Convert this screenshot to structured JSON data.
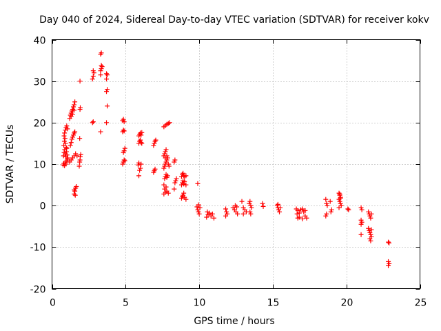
{
  "chart_data": {
    "type": "scatter",
    "title": "Day 040 of 2024, Sidereal Day-to-day VTEC variation (SDTVAR) for receiver kokv",
    "xlabel": "GPS time / hours",
    "ylabel": "SDTVAR / TECUs",
    "xlim": [
      0,
      25
    ],
    "ylim": [
      -20,
      40
    ],
    "xticks": [
      0,
      5,
      10,
      15,
      20,
      25
    ],
    "yticks": [
      -20,
      -10,
      0,
      10,
      20,
      30,
      40
    ],
    "grid": true,
    "marker": "plus",
    "color": "#ff0000",
    "series": [
      {
        "name": "SDTVAR",
        "points": [
          [
            0.75,
            9.8
          ],
          [
            0.8,
            10.2
          ],
          [
            0.85,
            9.6
          ],
          [
            0.9,
            10.5
          ],
          [
            0.95,
            10.0
          ],
          [
            1.0,
            10.8
          ],
          [
            1.05,
            11.2
          ],
          [
            0.78,
            12.0
          ],
          [
            0.82,
            12.8
          ],
          [
            0.86,
            13.5
          ],
          [
            0.9,
            12.5
          ],
          [
            0.94,
            11.8
          ],
          [
            0.98,
            13.0
          ],
          [
            1.02,
            12.2
          ],
          [
            1.06,
            11.5
          ],
          [
            0.8,
            14.5
          ],
          [
            0.84,
            15.5
          ],
          [
            0.88,
            16.2
          ],
          [
            0.92,
            15.0
          ],
          [
            0.96,
            14.0
          ],
          [
            1.0,
            13.8
          ],
          [
            0.85,
            17.5
          ],
          [
            0.9,
            18.2
          ],
          [
            0.95,
            18.8
          ],
          [
            1.0,
            19.2
          ],
          [
            1.05,
            18.5
          ],
          [
            0.82,
            16.8
          ],
          [
            1.2,
            10.5
          ],
          [
            1.3,
            11.0
          ],
          [
            1.4,
            11.5
          ],
          [
            1.5,
            12.0
          ],
          [
            1.6,
            12.5
          ],
          [
            1.7,
            12.0
          ],
          [
            1.25,
            14.5
          ],
          [
            1.3,
            15.2
          ],
          [
            1.35,
            16.0
          ],
          [
            1.4,
            16.5
          ],
          [
            1.45,
            17.0
          ],
          [
            1.5,
            17.5
          ],
          [
            1.55,
            17.8
          ],
          [
            1.2,
            21.0
          ],
          [
            1.25,
            21.8
          ],
          [
            1.3,
            22.3
          ],
          [
            1.35,
            22.8
          ],
          [
            1.4,
            23.2
          ],
          [
            1.45,
            23.8
          ],
          [
            1.5,
            24.3
          ],
          [
            1.55,
            25.0
          ],
          [
            1.5,
            23.0
          ],
          [
            1.4,
            22.0
          ],
          [
            1.3,
            21.5
          ],
          [
            1.5,
            2.8
          ],
          [
            1.55,
            3.5
          ],
          [
            1.6,
            4.2
          ],
          [
            1.65,
            4.6
          ],
          [
            1.5,
            3.8
          ],
          [
            1.58,
            2.5
          ],
          [
            1.85,
            9.5
          ],
          [
            1.88,
            10.5
          ],
          [
            1.9,
            11.0
          ],
          [
            1.92,
            11.8
          ],
          [
            1.95,
            12.3
          ],
          [
            1.88,
            16.2
          ],
          [
            1.9,
            23.2
          ],
          [
            1.92,
            23.6
          ],
          [
            1.9,
            30.0
          ],
          [
            2.75,
            20.0
          ],
          [
            2.8,
            20.2
          ],
          [
            2.75,
            30.5
          ],
          [
            2.8,
            31.2
          ],
          [
            2.85,
            32.0
          ],
          [
            2.8,
            32.5
          ],
          [
            3.3,
            17.8
          ],
          [
            3.3,
            31.5
          ],
          [
            3.3,
            32.5
          ],
          [
            3.35,
            33.0
          ],
          [
            3.4,
            33.5
          ],
          [
            3.35,
            33.8
          ],
          [
            3.3,
            36.5
          ],
          [
            3.35,
            36.8
          ],
          [
            3.7,
            20.0
          ],
          [
            3.75,
            24.0
          ],
          [
            3.7,
            27.5
          ],
          [
            3.75,
            28.0
          ],
          [
            3.7,
            30.5
          ],
          [
            3.75,
            31.5
          ],
          [
            3.7,
            31.8
          ],
          [
            4.8,
            10.0
          ],
          [
            4.85,
            10.5
          ],
          [
            4.9,
            11.0
          ],
          [
            4.95,
            10.8
          ],
          [
            4.85,
            12.8
          ],
          [
            4.9,
            13.2
          ],
          [
            4.95,
            13.8
          ],
          [
            4.8,
            17.8
          ],
          [
            4.85,
            18.2
          ],
          [
            4.9,
            18.0
          ],
          [
            4.8,
            20.5
          ],
          [
            4.85,
            20.8
          ],
          [
            4.9,
            20.2
          ],
          [
            5.9,
            7.2
          ],
          [
            5.95,
            8.5
          ],
          [
            6.0,
            9.0
          ],
          [
            6.05,
            10.0
          ],
          [
            5.85,
            9.8
          ],
          [
            5.9,
            10.3
          ],
          [
            5.9,
            15.0
          ],
          [
            5.95,
            15.5
          ],
          [
            6.0,
            15.8
          ],
          [
            6.05,
            15.2
          ],
          [
            6.1,
            15.0
          ],
          [
            5.9,
            16.8
          ],
          [
            5.95,
            17.2
          ],
          [
            6.0,
            17.5
          ],
          [
            6.05,
            17.0
          ],
          [
            6.1,
            17.6
          ],
          [
            6.9,
            8.0
          ],
          [
            6.95,
            8.4
          ],
          [
            7.0,
            8.8
          ],
          [
            6.9,
            14.5
          ],
          [
            6.95,
            15.0
          ],
          [
            7.0,
            15.5
          ],
          [
            7.05,
            15.8
          ],
          [
            7.6,
            2.8
          ],
          [
            7.7,
            3.2
          ],
          [
            7.8,
            3.5
          ],
          [
            7.9,
            3.0
          ],
          [
            7.65,
            4.0
          ],
          [
            7.75,
            4.5
          ],
          [
            7.6,
            5.0
          ],
          [
            7.65,
            6.5
          ],
          [
            7.7,
            7.0
          ],
          [
            7.75,
            7.5
          ],
          [
            7.8,
            6.8
          ],
          [
            7.85,
            7.2
          ],
          [
            7.6,
            9.0
          ],
          [
            7.65,
            9.5
          ],
          [
            7.7,
            10.0
          ],
          [
            7.75,
            10.5
          ],
          [
            7.8,
            11.0
          ],
          [
            7.85,
            11.5
          ],
          [
            7.9,
            10.0
          ],
          [
            7.95,
            9.5
          ],
          [
            7.6,
            12.0
          ],
          [
            7.65,
            12.5
          ],
          [
            7.7,
            13.0
          ],
          [
            7.75,
            13.5
          ],
          [
            7.8,
            12.0
          ],
          [
            7.7,
            11.5
          ],
          [
            7.6,
            19.0
          ],
          [
            7.7,
            19.3
          ],
          [
            7.8,
            19.6
          ],
          [
            7.9,
            19.8
          ],
          [
            8.0,
            20.0
          ],
          [
            8.3,
            4.0
          ],
          [
            8.35,
            5.5
          ],
          [
            8.4,
            6.0
          ],
          [
            8.45,
            6.5
          ],
          [
            8.3,
            10.5
          ],
          [
            8.35,
            11.0
          ],
          [
            8.8,
            1.8
          ],
          [
            8.85,
            2.2
          ],
          [
            8.9,
            2.5
          ],
          [
            8.95,
            3.0
          ],
          [
            9.0,
            2.0
          ],
          [
            9.1,
            1.5
          ],
          [
            8.8,
            5.0
          ],
          [
            8.85,
            5.5
          ],
          [
            8.9,
            6.0
          ],
          [
            8.95,
            5.2
          ],
          [
            9.0,
            5.8
          ],
          [
            9.1,
            5.0
          ],
          [
            8.8,
            7.0
          ],
          [
            8.85,
            7.5
          ],
          [
            8.9,
            7.8
          ],
          [
            8.95,
            7.2
          ],
          [
            9.0,
            7.0
          ],
          [
            9.1,
            7.2
          ],
          [
            9.9,
            5.3
          ],
          [
            9.85,
            -0.3
          ],
          [
            9.9,
            -1.0
          ],
          [
            9.95,
            -1.5
          ],
          [
            10.0,
            -2.0
          ],
          [
            10.05,
            -0.5
          ],
          [
            9.95,
            0.2
          ],
          [
            10.5,
            -2.8
          ],
          [
            10.6,
            -2.2
          ],
          [
            10.7,
            -1.8
          ],
          [
            10.8,
            -2.5
          ],
          [
            10.9,
            -2.0
          ],
          [
            11.0,
            -3.0
          ],
          [
            10.55,
            -1.5
          ],
          [
            11.8,
            -0.8
          ],
          [
            11.85,
            -1.5
          ],
          [
            11.9,
            -2.0
          ],
          [
            11.8,
            -2.5
          ],
          [
            12.3,
            -0.5
          ],
          [
            12.4,
            -1.0
          ],
          [
            12.5,
            -1.5
          ],
          [
            12.6,
            -2.0
          ],
          [
            12.45,
            0.0
          ],
          [
            12.55,
            -0.3
          ],
          [
            12.9,
            1.0
          ],
          [
            13.0,
            -0.5
          ],
          [
            13.1,
            -1.0
          ],
          [
            13.2,
            -1.5
          ],
          [
            13.0,
            -2.0
          ],
          [
            13.4,
            0.5
          ],
          [
            13.45,
            1.0
          ],
          [
            13.5,
            0.0
          ],
          [
            13.55,
            -0.5
          ],
          [
            13.45,
            -1.5
          ],
          [
            13.5,
            -2.0
          ],
          [
            14.3,
            0.5
          ],
          [
            14.35,
            -0.2
          ],
          [
            15.3,
            0.0
          ],
          [
            15.35,
            -0.5
          ],
          [
            15.4,
            -1.0
          ],
          [
            15.45,
            -1.5
          ],
          [
            15.5,
            -0.5
          ],
          [
            15.35,
            0.3
          ],
          [
            16.6,
            -0.8
          ],
          [
            16.7,
            -1.2
          ],
          [
            16.8,
            -1.8
          ],
          [
            16.9,
            -1.0
          ],
          [
            17.0,
            -0.8
          ],
          [
            17.1,
            -1.5
          ],
          [
            17.2,
            -1.2
          ],
          [
            16.65,
            -2.0
          ],
          [
            16.7,
            -3.0
          ],
          [
            16.8,
            -2.8
          ],
          [
            17.0,
            -3.2
          ],
          [
            17.2,
            -2.5
          ],
          [
            17.3,
            -3.0
          ],
          [
            18.6,
            1.5
          ],
          [
            18.65,
            0.5
          ],
          [
            18.7,
            0.0
          ],
          [
            18.6,
            -2.5
          ],
          [
            18.65,
            -2.0
          ],
          [
            18.9,
            1.0
          ],
          [
            19.0,
            -1.0
          ],
          [
            18.95,
            -1.5
          ],
          [
            19.5,
            3.0
          ],
          [
            19.55,
            2.5
          ],
          [
            19.6,
            2.0
          ],
          [
            19.5,
            1.5
          ],
          [
            19.55,
            1.0
          ],
          [
            19.6,
            0.5
          ],
          [
            19.65,
            0.0
          ],
          [
            19.5,
            -0.5
          ],
          [
            19.55,
            2.8
          ],
          [
            19.6,
            1.8
          ],
          [
            20.1,
            -0.8
          ],
          [
            20.15,
            -1.0
          ],
          [
            21.0,
            -0.5
          ],
          [
            21.05,
            -1.0
          ],
          [
            21.0,
            -3.5
          ],
          [
            21.05,
            -4.0
          ],
          [
            21.0,
            -4.5
          ],
          [
            21.0,
            -7.0
          ],
          [
            21.5,
            -1.5
          ],
          [
            21.55,
            -2.0
          ],
          [
            21.6,
            -2.5
          ],
          [
            21.65,
            -3.0
          ],
          [
            21.7,
            -2.0
          ],
          [
            21.5,
            -5.5
          ],
          [
            21.55,
            -6.0
          ],
          [
            21.6,
            -6.5
          ],
          [
            21.65,
            -7.0
          ],
          [
            21.7,
            -7.5
          ],
          [
            21.6,
            -8.0
          ],
          [
            21.65,
            -8.5
          ],
          [
            21.7,
            -5.8
          ],
          [
            22.85,
            -8.8
          ],
          [
            22.9,
            -9.0
          ],
          [
            22.85,
            -13.5
          ],
          [
            22.9,
            -14.0
          ],
          [
            22.85,
            -14.5
          ]
        ]
      }
    ]
  }
}
